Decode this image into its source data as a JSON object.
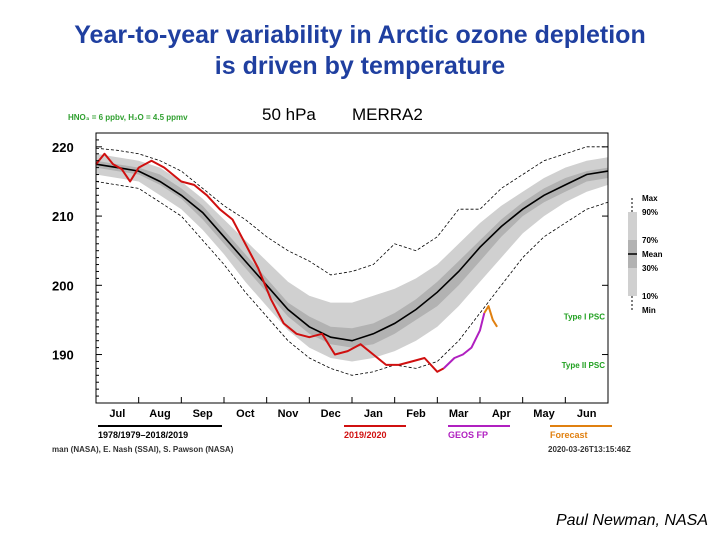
{
  "slide": {
    "title_line1": "Year-to-year variability in Arctic ozone depletion",
    "title_line2": "is driven by temperature",
    "credit": "Paul Newman, NASA"
  },
  "chart_data": {
    "type": "area",
    "header_left": "HNO₃ = 6 ppbv, H₂O = 4.5 ppmv",
    "level": "50 hPa",
    "dataset": "MERRA2",
    "xlabel": "",
    "ylabel": "",
    "ylim": [
      183,
      222
    ],
    "yticks": [
      190,
      200,
      210,
      220
    ],
    "ytick_labels": [
      "190",
      "200",
      "210",
      "220"
    ],
    "categories": [
      "Jul",
      "Aug",
      "Sep",
      "Oct",
      "Nov",
      "Dec",
      "Jan",
      "Feb",
      "Mar",
      "Apr",
      "May",
      "Jun"
    ],
    "x_positions": [
      0.5,
      1.5,
      2.5,
      3.5,
      4.5,
      5.5,
      6.5,
      7.5,
      8.5,
      9.5,
      10.5,
      11.5
    ],
    "xlim": [
      0,
      12
    ],
    "climatology_x": [
      0.0,
      0.5,
      1.0,
      1.5,
      2.0,
      2.5,
      3.0,
      3.5,
      4.0,
      4.5,
      5.0,
      5.5,
      6.0,
      6.5,
      7.0,
      7.5,
      8.0,
      8.5,
      9.0,
      9.5,
      10.0,
      10.5,
      11.0,
      11.5,
      12.0
    ],
    "climatology": {
      "max": [
        219.8,
        219.5,
        219.0,
        218.0,
        216.5,
        214.0,
        211.5,
        209.5,
        207.0,
        205.0,
        203.5,
        201.5,
        202.0,
        203.0,
        206.0,
        205.0,
        207.0,
        211.0,
        211.0,
        214.0,
        216.0,
        218.0,
        219.0,
        220.0,
        220.0
      ],
      "p90": [
        219.0,
        218.5,
        218.0,
        217.0,
        215.0,
        212.5,
        209.5,
        206.5,
        203.5,
        200.5,
        198.5,
        197.5,
        197.5,
        198.5,
        199.5,
        201.0,
        203.0,
        206.0,
        209.0,
        211.5,
        213.5,
        215.5,
        217.0,
        218.0,
        218.5
      ],
      "p70": [
        218.0,
        217.5,
        217.0,
        216.0,
        214.0,
        211.5,
        208.0,
        204.5,
        201.0,
        197.5,
        195.5,
        194.0,
        193.8,
        194.5,
        196.0,
        198.0,
        200.5,
        203.5,
        206.5,
        209.5,
        212.0,
        214.0,
        215.5,
        216.5,
        217.0
      ],
      "mean": [
        217.5,
        217.0,
        216.5,
        215.0,
        213.0,
        210.5,
        207.0,
        203.5,
        200.0,
        196.5,
        194.0,
        192.5,
        192.0,
        193.0,
        194.5,
        196.5,
        199.0,
        202.0,
        205.5,
        208.5,
        211.0,
        213.0,
        214.5,
        216.0,
        216.5
      ],
      "p30": [
        217.0,
        216.5,
        216.0,
        214.5,
        212.5,
        209.5,
        206.0,
        202.5,
        199.0,
        195.5,
        193.0,
        191.5,
        191.0,
        191.5,
        193.0,
        195.0,
        197.0,
        200.0,
        203.5,
        207.0,
        210.0,
        212.0,
        213.5,
        215.0,
        215.5
      ],
      "p10": [
        216.0,
        215.5,
        215.0,
        213.0,
        211.0,
        208.0,
        204.5,
        200.5,
        197.0,
        193.5,
        191.0,
        189.5,
        189.0,
        189.5,
        190.5,
        192.0,
        194.0,
        197.0,
        200.5,
        204.0,
        207.5,
        210.0,
        212.0,
        213.5,
        214.5
      ],
      "min": [
        215.0,
        214.5,
        214.0,
        212.0,
        210.0,
        206.5,
        203.0,
        199.0,
        195.5,
        192.0,
        189.5,
        188.0,
        187.0,
        187.5,
        188.5,
        188.0,
        189.0,
        192.0,
        196.0,
        200.0,
        204.0,
        207.0,
        209.0,
        211.0,
        212.0
      ]
    },
    "series": [
      {
        "name": "1978/1979–2018/2019",
        "color": "#000000",
        "kind": "mean"
      },
      {
        "name": "2019/2020",
        "color": "#d01010",
        "kind": "line",
        "x": [
          0.0,
          0.2,
          0.4,
          0.6,
          0.8,
          1.0,
          1.3,
          1.6,
          2.0,
          2.3,
          2.6,
          2.9,
          3.2,
          3.5,
          3.8,
          4.1,
          4.4,
          4.7,
          5.0,
          5.3,
          5.6,
          5.9,
          6.2,
          6.5,
          6.8,
          7.1,
          7.4,
          7.7,
          8.0,
          8.15
        ],
        "values": [
          217.5,
          219.0,
          217.5,
          216.8,
          215.0,
          217.0,
          218.0,
          217.0,
          215.0,
          214.5,
          213.0,
          211.0,
          209.5,
          206.0,
          202.5,
          198.0,
          194.5,
          193.0,
          192.5,
          193.0,
          190.0,
          190.5,
          191.5,
          190.0,
          188.5,
          188.5,
          189.0,
          189.5,
          187.5,
          188.0
        ]
      },
      {
        "name": "GEOS FP",
        "color": "#b020c0",
        "kind": "line",
        "x": [
          8.15,
          8.4,
          8.6,
          8.8,
          9.0,
          9.1
        ],
        "values": [
          188.0,
          189.5,
          190.0,
          191.0,
          193.5,
          196.0
        ]
      },
      {
        "name": "Forecast",
        "color": "#e08010",
        "kind": "line",
        "x": [
          9.1,
          9.2,
          9.3,
          9.4
        ],
        "values": [
          196.0,
          197.0,
          195.0,
          194.0
        ]
      }
    ],
    "thresholds": [
      {
        "label": "Type I PSC",
        "value": 195.5,
        "color": "#20a020"
      },
      {
        "label": "Type II PSC",
        "value": 188.5,
        "color": "#20a020"
      }
    ],
    "legend_bands": [
      "Max",
      "90%",
      "70%",
      "Mean",
      "30%",
      "10%",
      "Min"
    ],
    "legend_bottom": [
      "1978/1979–2018/2019",
      "2019/2020",
      "GEOS FP",
      "Forecast"
    ],
    "footer_left": "man (NASA), E. Nash (SSAI), S. Pawson (NASA)",
    "footer_right": "2020-03-26T13:15:46Z",
    "colors": {
      "band_outer": "#d0d0d0",
      "band_mid": "#b2b2b2",
      "band_inner": "#8c8c8c",
      "minmax": "#000000"
    }
  }
}
